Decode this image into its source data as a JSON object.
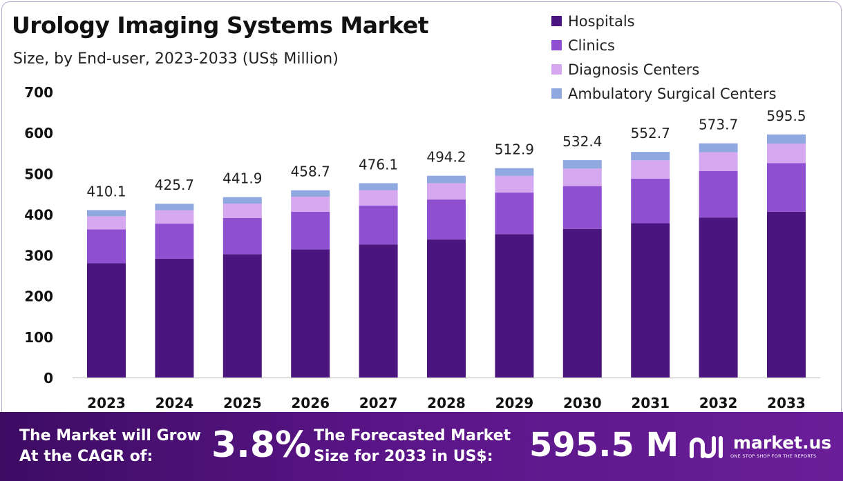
{
  "chart_data": {
    "type": "bar",
    "stacked": true,
    "title": "Urology Imaging Systems Market",
    "subtitle": "Size, by End-user, 2023-2033 (US$ Million)",
    "categories": [
      "2023",
      "2024",
      "2025",
      "2026",
      "2027",
      "2028",
      "2029",
      "2030",
      "2031",
      "2032",
      "2033"
    ],
    "series": [
      {
        "name": "Hospitals",
        "color": "#4b1580",
        "values": [
          280,
          291,
          302,
          314,
          326,
          338,
          351,
          364,
          378,
          392,
          406
        ]
      },
      {
        "name": "Clinics",
        "color": "#8e4fd0",
        "values": [
          83,
          86,
          89,
          92,
          95,
          98,
          102,
          105,
          109,
          114,
          119
        ]
      },
      {
        "name": "Diagnosis Centers",
        "color": "#d6a8f0",
        "values": [
          32,
          33,
          35,
          37,
          38,
          40,
          41,
          43,
          45,
          46,
          48
        ]
      },
      {
        "name": "Ambulatory Surgical Centers",
        "color": "#8fa8e0",
        "values": [
          15.1,
          15.7,
          15.9,
          15.7,
          17.1,
          18.2,
          18.9,
          20.4,
          20.7,
          21.7,
          22.5
        ]
      }
    ],
    "totals": [
      "410.1",
      "425.7",
      "441.9",
      "458.7",
      "476.1",
      "494.2",
      "512.9",
      "532.4",
      "552.7",
      "573.7",
      "595.5"
    ],
    "yticks": [
      "0",
      "100",
      "200",
      "300",
      "400",
      "500",
      "600",
      "700"
    ],
    "ylim": [
      0,
      700
    ],
    "legend_position": "top-right",
    "grid": false
  },
  "footer": {
    "cagr_label": "The Market will Grow At the CAGR of:",
    "cagr_value": "3.8%",
    "forecast_label": "The Forecasted Market Size for 2033 in US$:",
    "forecast_value": "595.5 M",
    "brand_name": "market.us",
    "brand_tagline": "ONE STOP SHOP FOR THE REPORTS",
    "brand_icon": "market-us-logo-icon"
  }
}
